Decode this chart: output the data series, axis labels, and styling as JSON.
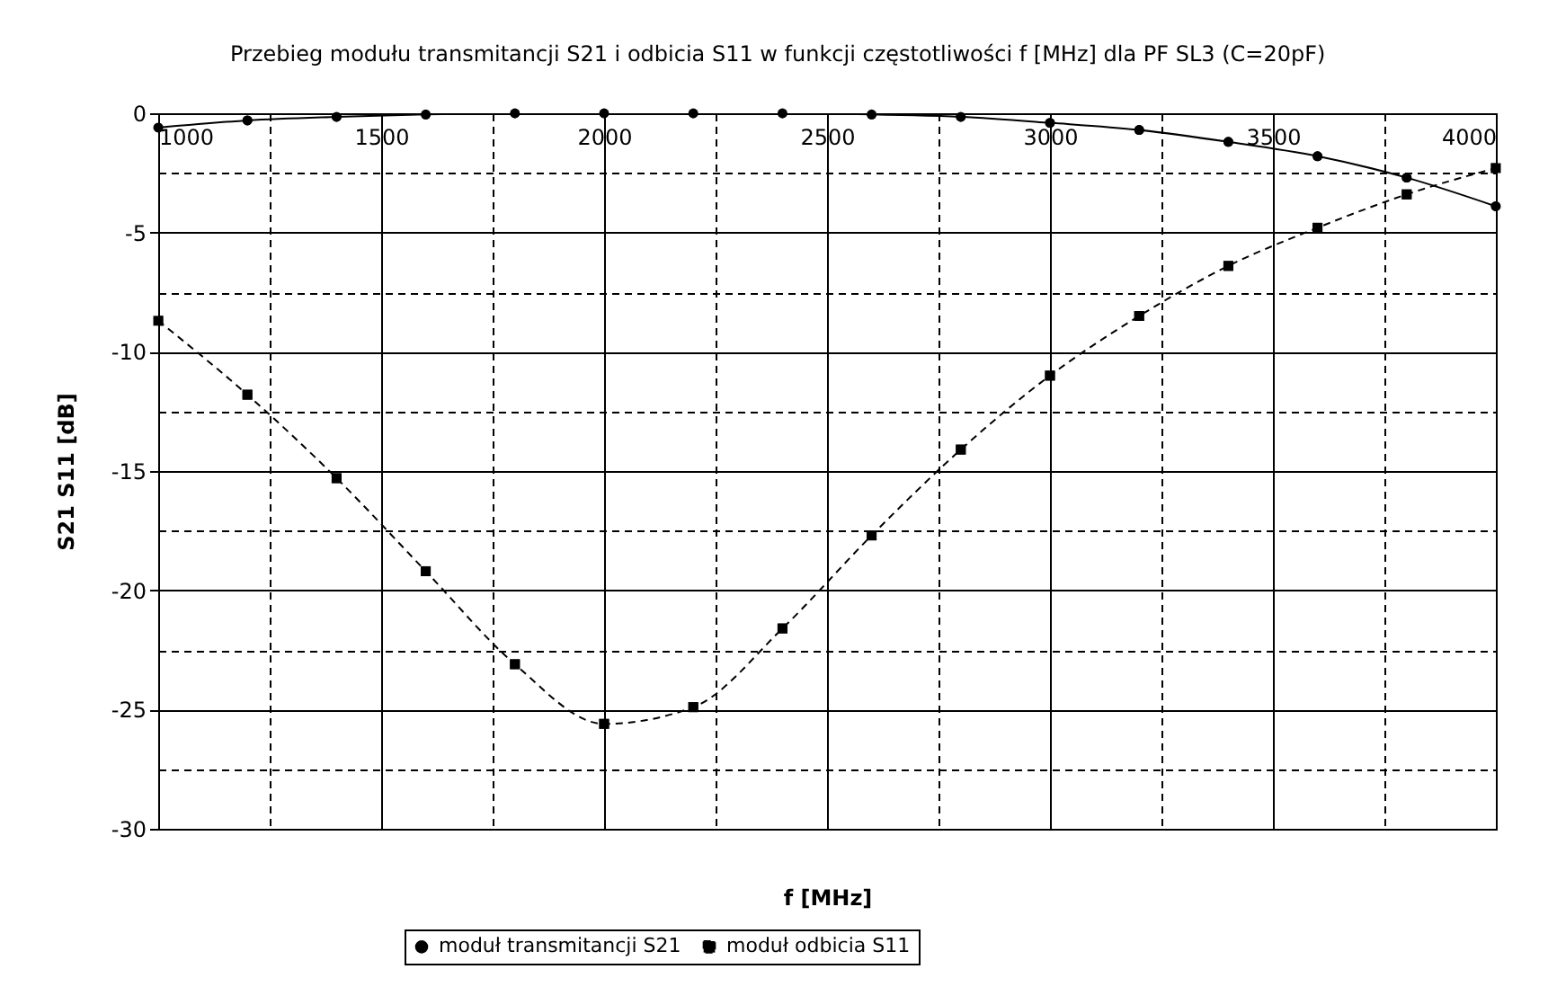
{
  "chart_data": {
    "type": "line",
    "title": "Przebieg modułu transmitancji S21 i odbicia S11 w funkcji częstotliwości f [MHz] dla PF SL3 (C=20pF)",
    "xlabel": "f [MHz]",
    "ylabel": "S21  S11 [dB]",
    "x": [
      1000,
      1200,
      1400,
      1600,
      1800,
      2000,
      2200,
      2400,
      2600,
      2800,
      3000,
      3200,
      3400,
      3600,
      3800,
      4000
    ],
    "series": [
      {
        "name": "moduł transmitancji S21",
        "color": "#000000",
        "marker": "circle",
        "line_style": "solid",
        "values": [
          -0.6,
          -0.3,
          -0.15,
          -0.05,
          0,
          0,
          0,
          0,
          -0.05,
          -0.15,
          -0.4,
          -0.7,
          -1.2,
          -1.8,
          -2.7,
          -3.9
        ]
      },
      {
        "name": "moduł odbicia S11",
        "color": "#000000",
        "marker": "square",
        "line_style": "dashed",
        "values": [
          -8.7,
          -11.8,
          -15.3,
          -19.2,
          -23.1,
          -25.6,
          -24.9,
          -21.6,
          -17.7,
          -14.1,
          -11.0,
          -8.5,
          -6.4,
          -4.8,
          -3.4,
          -2.3
        ]
      }
    ],
    "xlim": [
      1000,
      4000
    ],
    "xticks": [
      1000,
      1500,
      2000,
      2500,
      3000,
      3500,
      4000
    ],
    "ylim": [
      -30,
      0
    ],
    "yticks": [
      -30,
      -25,
      -20,
      -15,
      -10,
      -5,
      0
    ],
    "grid": true,
    "legend": "bottom"
  }
}
